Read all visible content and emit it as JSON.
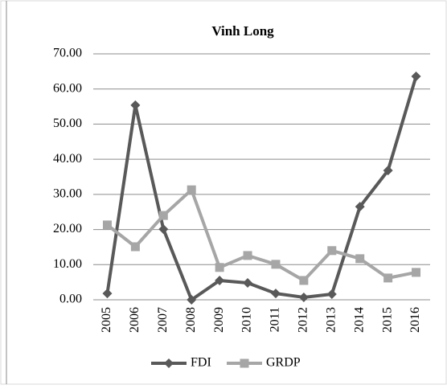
{
  "chart_data": {
    "type": "line",
    "title": "Vinh Long",
    "categories": [
      "2005",
      "2006",
      "2007",
      "2008",
      "2009",
      "2010",
      "2011",
      "2012",
      "2013",
      "2014",
      "2015",
      "2016"
    ],
    "series": [
      {
        "name": "FDI",
        "color": "#595959",
        "marker": "diamond",
        "values": [
          1.8,
          55.4,
          20.1,
          0,
          5.5,
          4.8,
          1.8,
          0.7,
          1.6,
          26.5,
          36.8,
          63.6
        ]
      },
      {
        "name": "GRDP",
        "color": "#a6a6a6",
        "marker": "square",
        "values": [
          21.3,
          15.1,
          24.0,
          31.3,
          9.2,
          12.6,
          10.1,
          5.5,
          14.0,
          11.7,
          6.2,
          7.8
        ]
      }
    ],
    "ylim": [
      0,
      70
    ],
    "yticks": [
      {
        "value": 0,
        "label": "0.00"
      },
      {
        "value": 10,
        "label": "10.00"
      },
      {
        "value": 20,
        "label": "20.00"
      },
      {
        "value": 30,
        "label": "30.00"
      },
      {
        "value": 40,
        "label": "40.00"
      },
      {
        "value": 50,
        "label": "50.00"
      },
      {
        "value": 60,
        "label": "60.00"
      },
      {
        "value": 70,
        "label": "70.00"
      }
    ],
    "grid": true,
    "legend": "bottom"
  }
}
